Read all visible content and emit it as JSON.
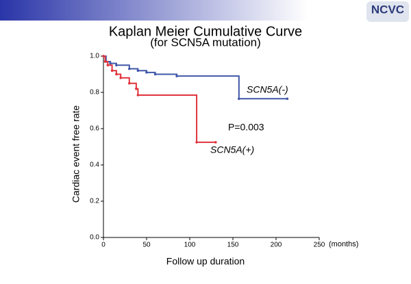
{
  "logo": "NCVC",
  "chart_data": {
    "type": "step",
    "title": "Kaplan Meier Cumulative Curve",
    "subtitle": "(for SCN5A mutation)",
    "ylabel": "Cardiac event free rate",
    "xlabel": "Follow up duration",
    "xunit": "(months)",
    "annotation": "P=0.003",
    "xlim": [
      0,
      250
    ],
    "xticks": [
      0,
      50,
      100,
      150,
      200,
      250
    ],
    "ylim": [
      0,
      1
    ],
    "yticks": [
      {
        "value": 0,
        "label": "0.0"
      },
      0.2,
      0.4,
      0.6,
      0.8,
      {
        "value": 1,
        "label": "1.0"
      }
    ],
    "series": [
      {
        "name": "SCN5A(-)",
        "color": "#3f57a8",
        "x": [
          0,
          3,
          8,
          15,
          30,
          40,
          50,
          60,
          85,
          157,
          213
        ],
        "values": [
          1,
          0.97,
          0.96,
          0.95,
          0.93,
          0.92,
          0.91,
          0.9,
          0.89,
          0.765,
          0.765
        ]
      },
      {
        "name": "SCN5A(+)",
        "color": "#e0333b",
        "x": [
          0,
          2,
          5,
          10,
          15,
          20,
          30,
          38,
          40,
          108,
          130
        ],
        "values": [
          1,
          0.97,
          0.95,
          0.92,
          0.9,
          0.88,
          0.85,
          0.82,
          0.785,
          0.525,
          0.525
        ]
      }
    ]
  }
}
